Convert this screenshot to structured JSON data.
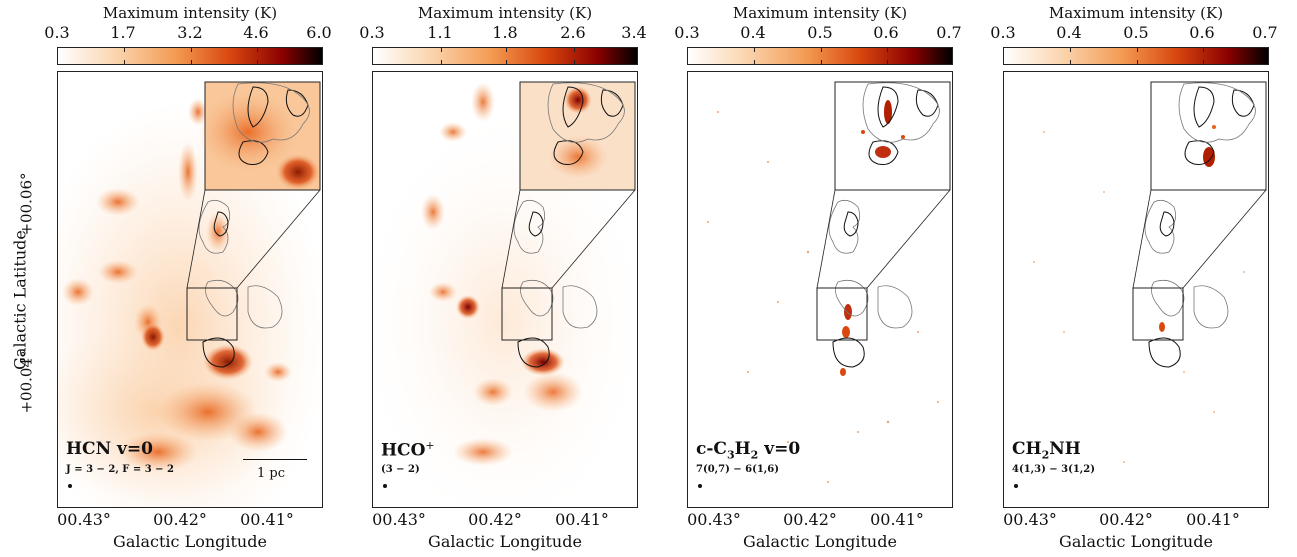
{
  "figure": {
    "ylabel": "Galactic Latitude",
    "xlabel": "Galactic Longitude",
    "yticks": [
      "+00.06°",
      "+00.04°"
    ],
    "xticks": [
      "00.43°",
      "00.42°",
      "00.41°"
    ],
    "scale_label": "1 pc"
  },
  "panels": [
    {
      "colorbar_title": "Maximum intensity (K)",
      "colorbar_ticks": [
        "0.3",
        "1.7",
        "3.2",
        "4.6",
        "6.0"
      ],
      "colorbar_range": [
        0.3,
        6.0
      ],
      "species_label": "HCN v=0",
      "transition_label": "J = 3 − 2, F = 3 − 2",
      "palette_intensity": 0.85
    },
    {
      "colorbar_title": "Maximum intensity (K)",
      "colorbar_ticks": [
        "0.3",
        "1.1",
        "1.8",
        "2.6",
        "3.4"
      ],
      "colorbar_range": [
        0.3,
        3.4
      ],
      "species_label": "HCO",
      "species_sup": "+",
      "transition_label": "(3 − 2)",
      "palette_intensity": 0.6
    },
    {
      "colorbar_title": "Maximum intensity (K)",
      "colorbar_ticks": [
        "0.3",
        "0.4",
        "0.5",
        "0.6",
        "0.7"
      ],
      "colorbar_range": [
        0.3,
        0.7
      ],
      "species_label_parts": [
        "c-C",
        "3",
        "H",
        "2",
        " v=0"
      ],
      "transition_label": "7(0,7) − 6(1,6)",
      "palette_intensity": 0.15
    },
    {
      "colorbar_title": "Maximum intensity (K)",
      "colorbar_ticks": [
        "0.3",
        "0.4",
        "0.5",
        "0.6",
        "0.7"
      ],
      "colorbar_range": [
        0.3,
        0.7
      ],
      "species_label_parts": [
        "CH",
        "2",
        "NH"
      ],
      "transition_label": "4(1,3) − 3(1,2)",
      "palette_intensity": 0.1
    }
  ],
  "colors": {
    "cmap_low": "#ffffff",
    "cmap_mid": "#e8641c",
    "cmap_high": "#8b0000",
    "cmap_top": "#000000",
    "contour_gray": "#777777",
    "contour_black": "#111111"
  }
}
